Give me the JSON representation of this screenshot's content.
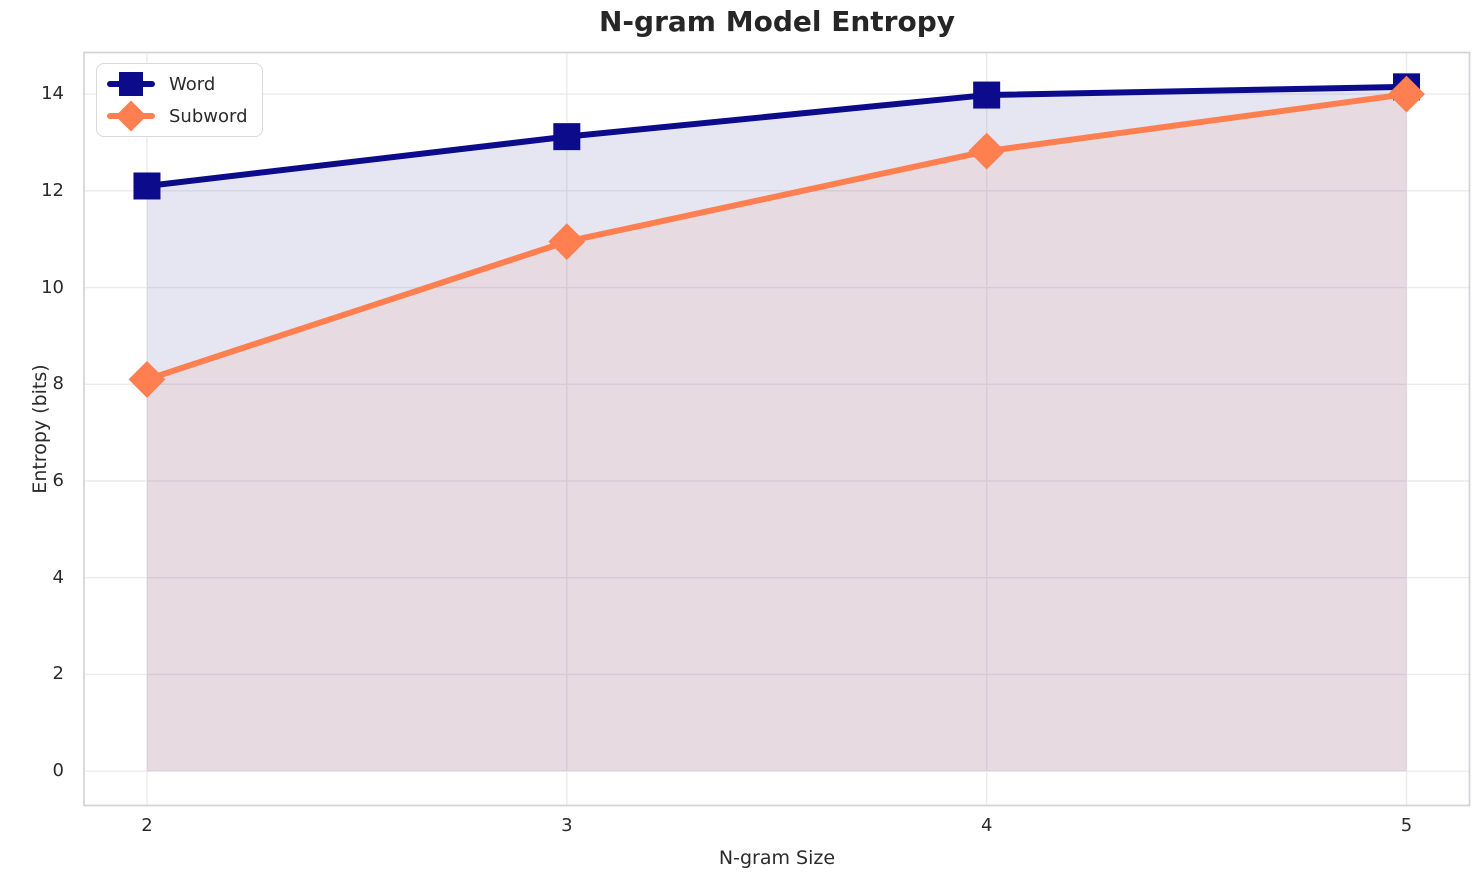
{
  "chart_data": {
    "type": "line",
    "title": "N-gram Model Entropy",
    "xlabel": "N-gram Size",
    "ylabel": "Entropy (bits)",
    "x": [
      2,
      3,
      4,
      5
    ],
    "series": [
      {
        "name": "Word",
        "values": [
          12.1,
          13.12,
          13.98,
          14.15
        ],
        "color": "#0b0b8c",
        "marker": "square",
        "fill_to_zero": true,
        "fill_opacity": 0.1
      },
      {
        "name": "Subword",
        "values": [
          8.1,
          10.95,
          12.82,
          14.0
        ],
        "color": "#ff7f50",
        "marker": "diamond",
        "fill_to_zero": true,
        "fill_opacity": 0.11
      }
    ],
    "xticks": [
      2,
      3,
      4,
      5
    ],
    "yticks": [
      0,
      2,
      4,
      6,
      8,
      10,
      12,
      14
    ],
    "xlim": [
      1.85,
      5.15
    ],
    "ylim": [
      -0.71,
      14.86
    ],
    "grid": true,
    "grid_color": "#ebebee",
    "spine_color": "#d2d2d8",
    "legend_position": "upper left",
    "line_width": 6,
    "marker_size": 27
  }
}
